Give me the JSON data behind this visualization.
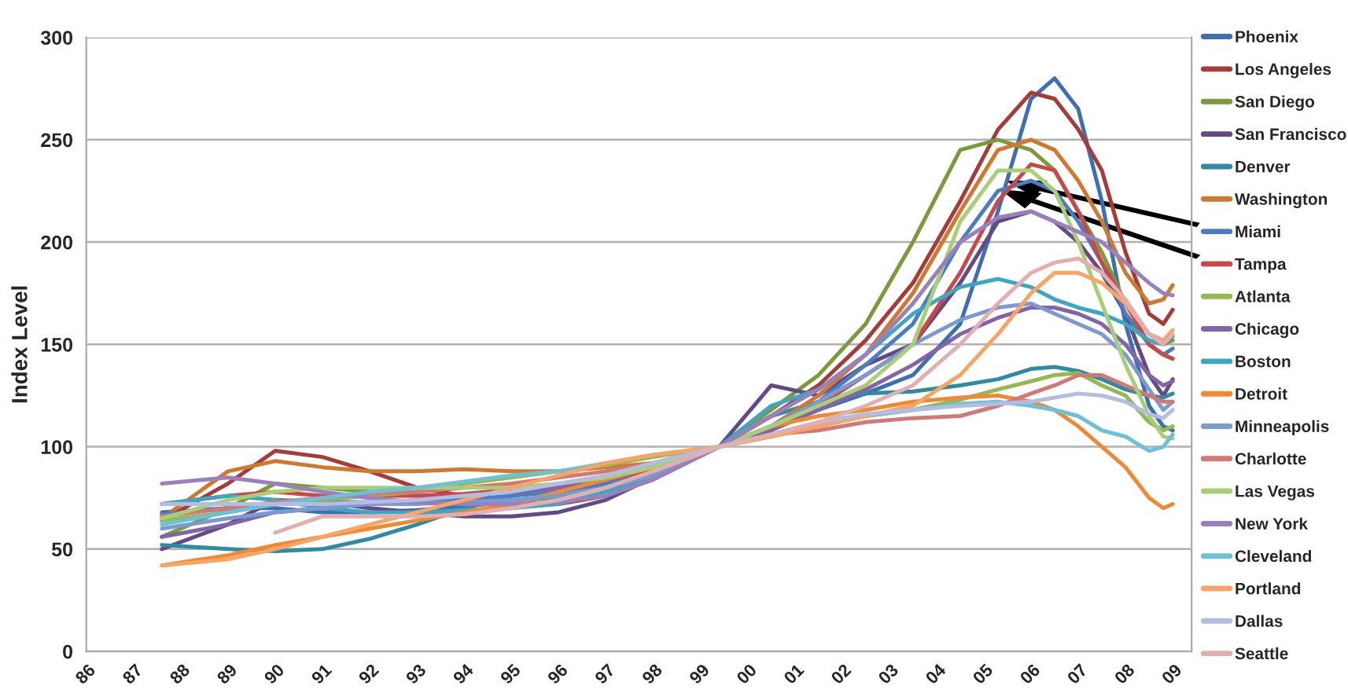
{
  "chart_data": {
    "type": "line",
    "ylabel": "Index Level",
    "x": [
      1987.6,
      1989,
      1990,
      1991,
      1992,
      1993,
      1994,
      1995,
      1996,
      1997,
      1998,
      1999.4,
      2000.5,
      2001.5,
      2002.5,
      2003.5,
      2004.5,
      2005.3,
      2006,
      2006.5,
      2007,
      2007.5,
      2008,
      2008.5,
      2008.8,
      2009.0
    ],
    "xlim": [
      1986,
      2009.4
    ],
    "xticks": [
      {
        "value": 1986,
        "label": "86"
      },
      {
        "value": 1987,
        "label": "87"
      },
      {
        "value": 1988,
        "label": "88"
      },
      {
        "value": 1989,
        "label": "89"
      },
      {
        "value": 1990,
        "label": "90"
      },
      {
        "value": 1991,
        "label": "91"
      },
      {
        "value": 1992,
        "label": "92"
      },
      {
        "value": 1993,
        "label": "93"
      },
      {
        "value": 1994,
        "label": "94"
      },
      {
        "value": 1995,
        "label": "95"
      },
      {
        "value": 1996,
        "label": "96"
      },
      {
        "value": 1997,
        "label": "97"
      },
      {
        "value": 1998,
        "label": "98"
      },
      {
        "value": 1999,
        "label": "99"
      },
      {
        "value": 2000,
        "label": "00"
      },
      {
        "value": 2001,
        "label": "01"
      },
      {
        "value": 2002,
        "label": "02"
      },
      {
        "value": 2003,
        "label": "03"
      },
      {
        "value": 2004,
        "label": "04"
      },
      {
        "value": 2005,
        "label": "05"
      },
      {
        "value": 2006,
        "label": "06"
      },
      {
        "value": 2007,
        "label": "07"
      },
      {
        "value": 2008,
        "label": "08"
      },
      {
        "value": 2009,
        "label": "09"
      }
    ],
    "ylim": [
      0,
      300
    ],
    "yticks": [
      0,
      50,
      100,
      150,
      200,
      250,
      300
    ],
    "grid": "y",
    "legend": "right",
    "line_style": "solid",
    "marker": "none",
    "series": [
      {
        "name": "Phoenix",
        "color": "#3e6fb0",
        "values": [
          68,
          70,
          70,
          68,
          68,
          69,
          71,
          73,
          76,
          80,
          87,
          100,
          110,
          118,
          126,
          135,
          160,
          215,
          270,
          280,
          265,
          220,
          160,
          120,
          110,
          108
        ]
      },
      {
        "name": "Los Angeles",
        "color": "#a63c38",
        "values": [
          64,
          82,
          98,
          95,
          88,
          80,
          76,
          72,
          72,
          76,
          84,
          100,
          115,
          130,
          152,
          180,
          220,
          255,
          273,
          270,
          255,
          235,
          195,
          165,
          160,
          167
        ]
      },
      {
        "name": "San Diego",
        "color": "#7a9a3c",
        "values": [
          56,
          70,
          82,
          80,
          78,
          76,
          74,
          74,
          75,
          80,
          88,
          100,
          118,
          135,
          160,
          200,
          245,
          250,
          245,
          235,
          215,
          195,
          170,
          155,
          150,
          152
        ]
      },
      {
        "name": "San Francisco",
        "color": "#644a85",
        "values": [
          50,
          62,
          74,
          73,
          70,
          68,
          66,
          66,
          68,
          74,
          85,
          100,
          130,
          125,
          140,
          150,
          180,
          210,
          215,
          210,
          200,
          185,
          165,
          135,
          125,
          133
        ]
      },
      {
        "name": "Denver",
        "color": "#2f8ba0",
        "values": [
          52,
          50,
          49,
          50,
          55,
          62,
          70,
          76,
          80,
          84,
          90,
          100,
          115,
          122,
          126,
          127,
          130,
          133,
          138,
          139,
          137,
          133,
          128,
          125,
          124,
          126
        ]
      },
      {
        "name": "Washington",
        "color": "#d0782e",
        "values": [
          65,
          88,
          93,
          90,
          88,
          88,
          89,
          88,
          88,
          90,
          92,
          100,
          110,
          125,
          145,
          175,
          215,
          245,
          250,
          245,
          230,
          210,
          185,
          170,
          172,
          179
        ]
      },
      {
        "name": "Miami",
        "color": "#4a7ec0",
        "values": [
          67,
          70,
          72,
          73,
          73,
          73,
          74,
          76,
          78,
          82,
          88,
          100,
          110,
          122,
          140,
          160,
          200,
          225,
          230,
          225,
          210,
          190,
          165,
          150,
          145,
          148
        ]
      },
      {
        "name": "Tampa",
        "color": "#c9494a",
        "values": [
          72,
          76,
          78,
          76,
          76,
          76,
          77,
          79,
          81,
          84,
          89,
          100,
          110,
          120,
          135,
          150,
          185,
          220,
          238,
          235,
          215,
          190,
          170,
          150,
          145,
          143
        ]
      },
      {
        "name": "Atlanta",
        "color": "#94b952",
        "values": [
          64,
          68,
          72,
          74,
          76,
          78,
          82,
          85,
          88,
          91,
          95,
          100,
          105,
          110,
          115,
          118,
          123,
          128,
          132,
          135,
          136,
          130,
          125,
          112,
          108,
          110
        ]
      },
      {
        "name": "Chicago",
        "color": "#8264a8",
        "values": [
          56,
          62,
          68,
          70,
          72,
          74,
          76,
          78,
          80,
          84,
          90,
          100,
          108,
          118,
          128,
          140,
          155,
          163,
          168,
          168,
          165,
          160,
          150,
          135,
          130,
          132
        ]
      },
      {
        "name": "Boston",
        "color": "#3fa6c0",
        "values": [
          72,
          76,
          74,
          70,
          68,
          68,
          69,
          70,
          72,
          78,
          85,
          100,
          120,
          128,
          145,
          165,
          178,
          182,
          178,
          172,
          168,
          165,
          160,
          152,
          150,
          154
        ]
      },
      {
        "name": "Detroit",
        "color": "#ef8a32",
        "values": [
          42,
          47,
          52,
          56,
          60,
          64,
          68,
          72,
          78,
          84,
          90,
          100,
          110,
          115,
          118,
          122,
          124,
          125,
          122,
          118,
          110,
          100,
          90,
          75,
          70,
          72
        ]
      },
      {
        "name": "Minneapolis",
        "color": "#7d9ad0",
        "values": [
          60,
          65,
          68,
          70,
          72,
          72,
          73,
          74,
          76,
          80,
          86,
          100,
          110,
          122,
          135,
          150,
          162,
          168,
          170,
          165,
          160,
          155,
          145,
          128,
          118,
          122
        ]
      },
      {
        "name": "Charlotte",
        "color": "#d07a78",
        "values": [
          66,
          70,
          73,
          75,
          77,
          78,
          80,
          82,
          85,
          88,
          92,
          100,
          106,
          108,
          112,
          114,
          115,
          120,
          126,
          130,
          135,
          135,
          130,
          125,
          122,
          122
        ]
      },
      {
        "name": "Las Vegas",
        "color": "#a9ce78",
        "values": [
          65,
          74,
          78,
          80,
          80,
          80,
          80,
          80,
          82,
          85,
          90,
          100,
          110,
          120,
          130,
          150,
          210,
          235,
          235,
          225,
          200,
          170,
          140,
          115,
          105,
          104
        ]
      },
      {
        "name": "New York",
        "color": "#9a80bc",
        "values": [
          82,
          85,
          82,
          78,
          75,
          73,
          72,
          72,
          73,
          76,
          84,
          100,
          115,
          128,
          145,
          170,
          200,
          212,
          215,
          210,
          205,
          200,
          190,
          180,
          175,
          174
        ]
      },
      {
        "name": "Cleveland",
        "color": "#6cc0d8",
        "values": [
          62,
          68,
          72,
          75,
          78,
          80,
          83,
          86,
          88,
          92,
          96,
          100,
          106,
          112,
          115,
          118,
          121,
          122,
          120,
          118,
          115,
          108,
          105,
          98,
          100,
          106
        ]
      },
      {
        "name": "Portland",
        "color": "#f7a465",
        "values": [
          42,
          45,
          50,
          56,
          62,
          68,
          74,
          80,
          86,
          92,
          96,
          100,
          105,
          110,
          115,
          120,
          135,
          155,
          175,
          185,
          185,
          180,
          170,
          155,
          152,
          157
        ]
      },
      {
        "name": "Dallas",
        "color": "#b4bde0",
        "values": [
          72,
          72,
          72,
          72,
          73,
          74,
          76,
          78,
          82,
          86,
          92,
          100,
          106,
          112,
          116,
          118,
          120,
          121,
          122,
          124,
          126,
          125,
          122,
          116,
          114,
          118
        ]
      },
      {
        "name": "Seattle",
        "color": "#e2aeb0",
        "values": [
          null,
          null,
          58,
          66,
          66,
          66,
          67,
          70,
          74,
          80,
          88,
          100,
          106,
          112,
          120,
          130,
          150,
          170,
          185,
          190,
          192,
          185,
          172,
          155,
          150,
          155
        ]
      }
    ]
  }
}
